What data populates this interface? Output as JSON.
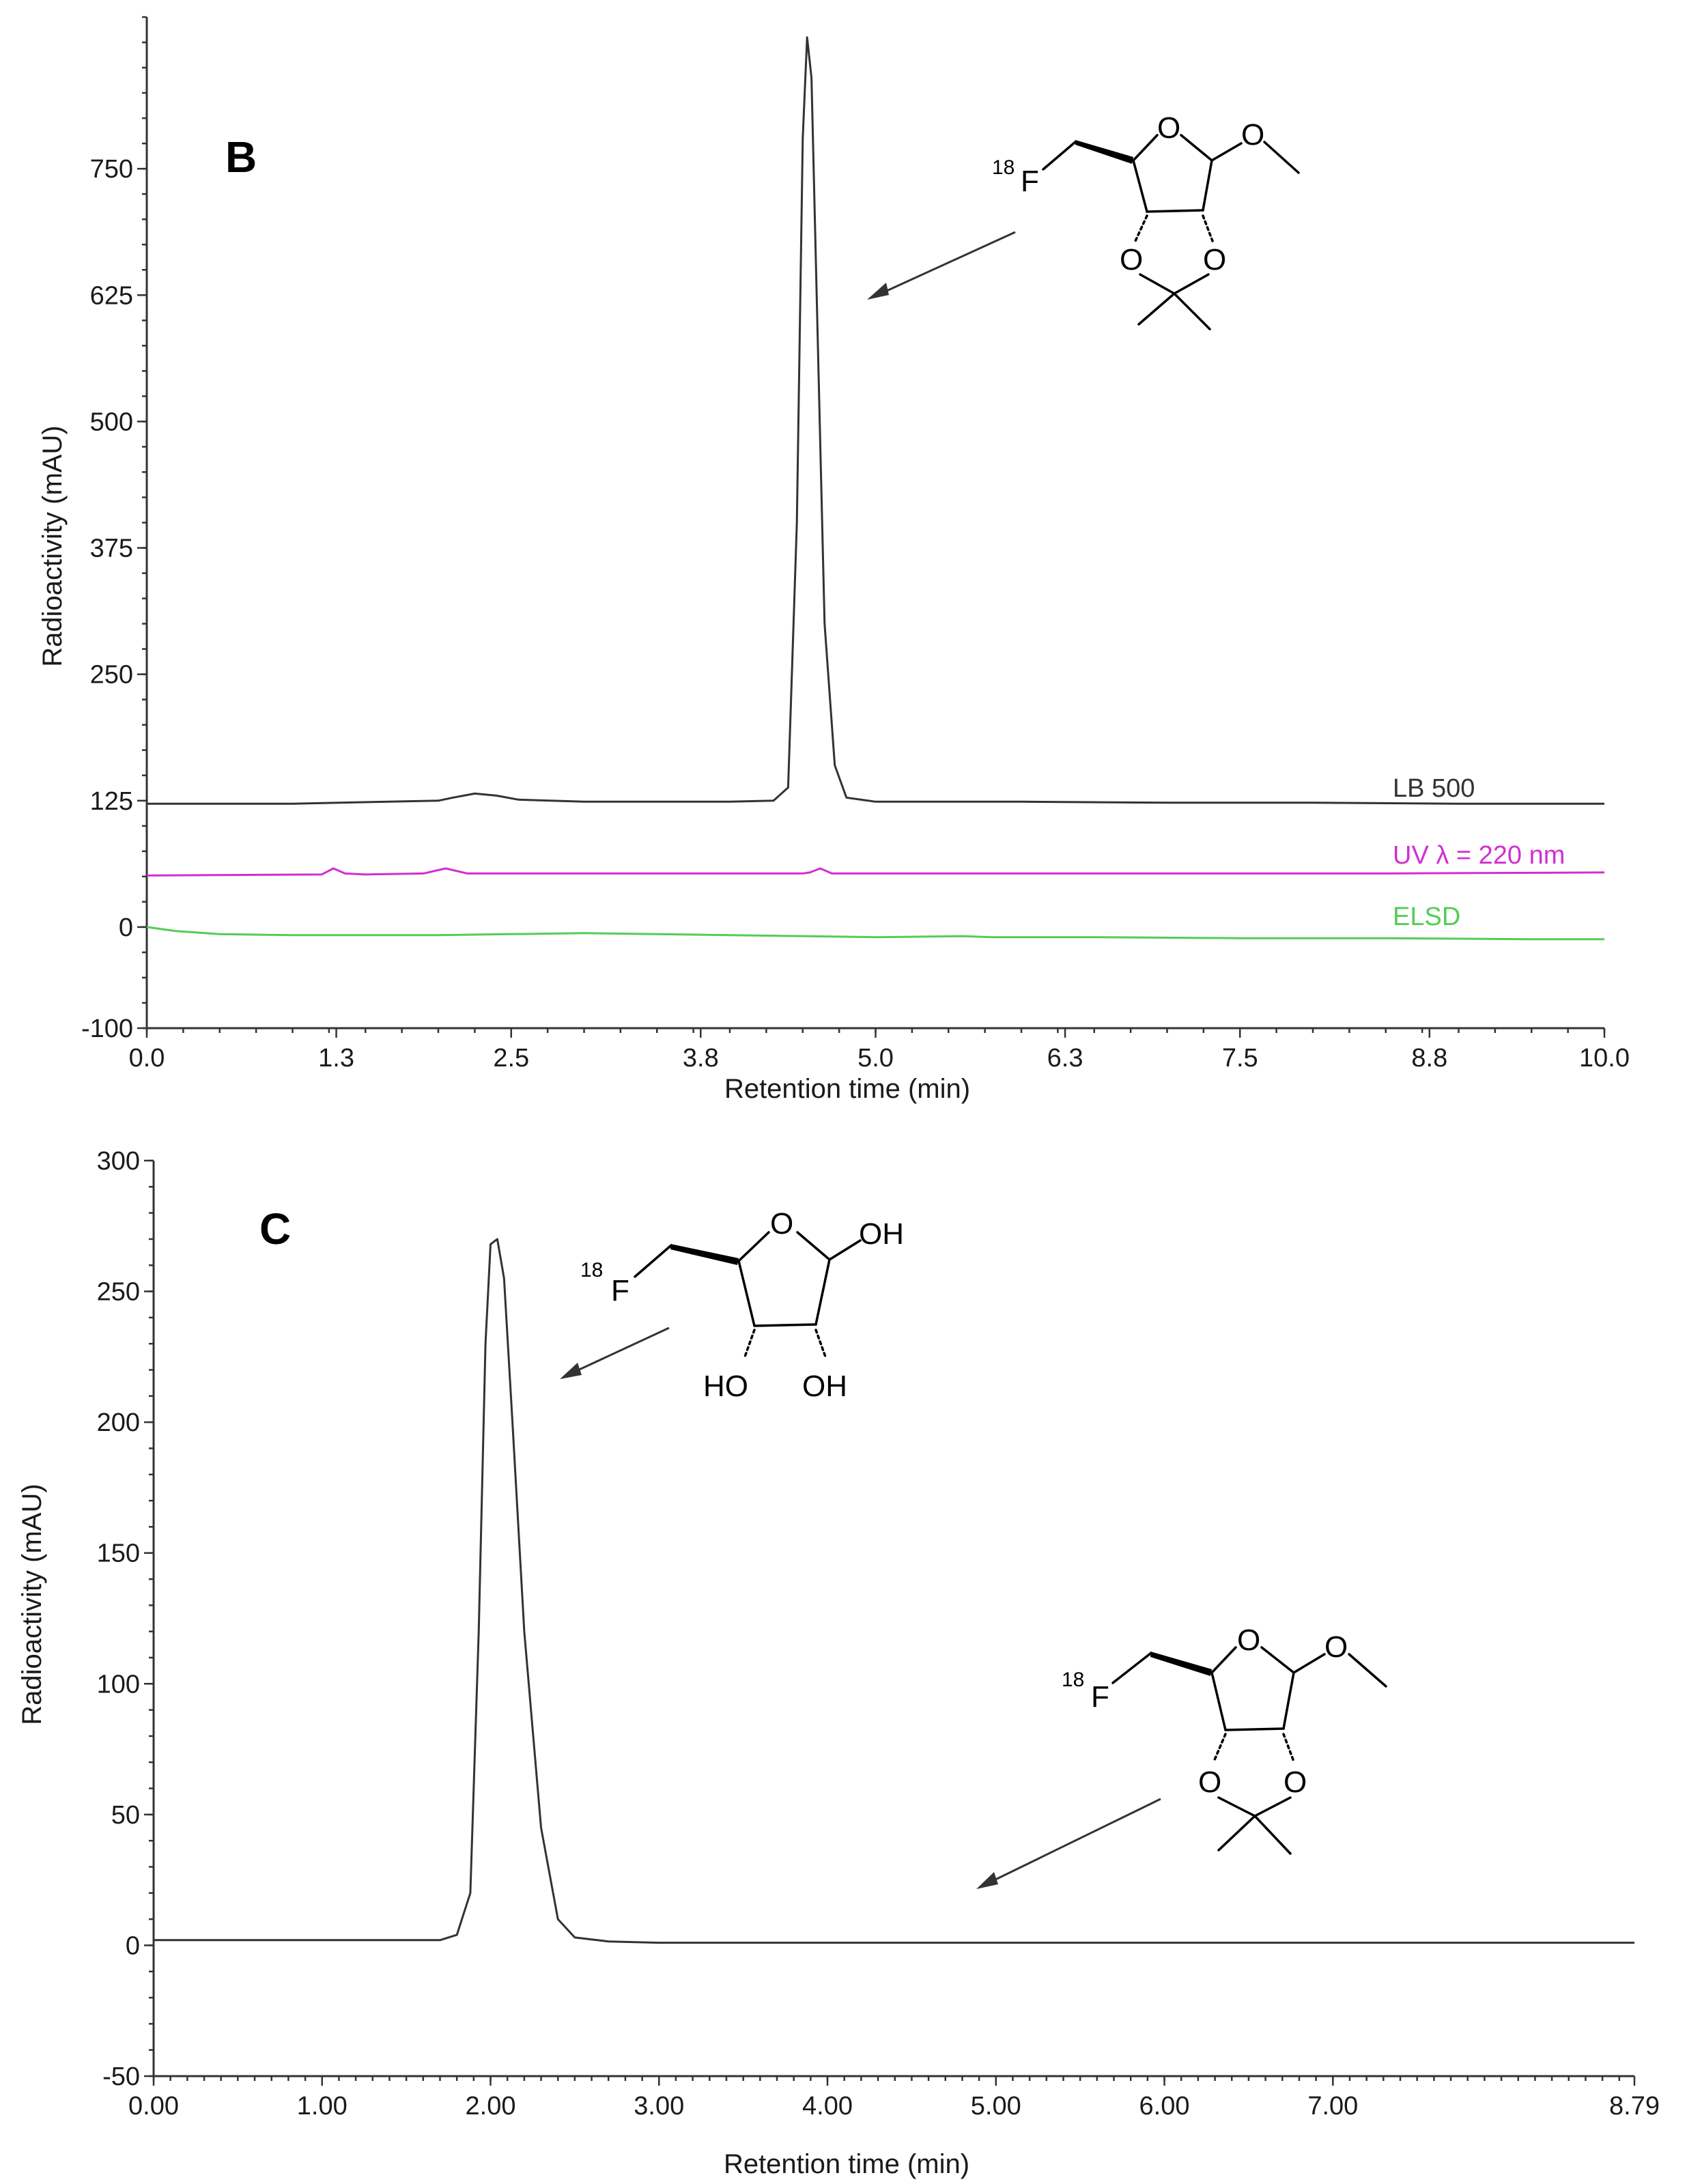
{
  "chart_data": [
    {
      "panel": "B",
      "type": "line",
      "xlabel": "Retention time (min)",
      "ylabel": "Radioactivity (mAU)",
      "xlim": [
        0,
        10
      ],
      "ylim": [
        -100,
        900
      ],
      "xticks": [
        "0.0",
        "1.3",
        "2.5",
        "3.8",
        "5.0",
        "6.3",
        "7.5",
        "8.8",
        "10.0"
      ],
      "yticks": [
        "-100",
        "0",
        "125",
        "250",
        "375",
        "500",
        "625",
        "750"
      ],
      "ytick_values": [
        -100,
        0,
        125,
        250,
        375,
        500,
        625,
        750
      ],
      "series": [
        {
          "name": "LB 500",
          "color": "#333333",
          "x": [
            0.0,
            1.0,
            2.0,
            2.1,
            2.25,
            2.4,
            2.55,
            3.0,
            4.0,
            4.3,
            4.4,
            4.46,
            4.5,
            4.53,
            4.56,
            4.6,
            4.65,
            4.72,
            4.8,
            5.0,
            6.0,
            7.0,
            8.0,
            9.0,
            10.0
          ],
          "y": [
            122,
            122,
            125,
            128,
            132,
            130,
            126,
            124,
            124,
            125,
            138,
            400,
            780,
            880,
            840,
            600,
            300,
            160,
            128,
            124,
            124,
            123,
            123,
            122,
            122
          ]
        },
        {
          "name": "UV λ = 220 nm",
          "color": "#d12fd1",
          "x": [
            0.0,
            1.2,
            1.28,
            1.36,
            1.5,
            1.9,
            2.05,
            2.2,
            3.0,
            4.5,
            4.55,
            4.62,
            4.7,
            5.5,
            7.0,
            8.5,
            10.0
          ],
          "y": [
            51,
            52,
            58,
            53,
            52,
            53,
            58,
            53,
            53,
            53,
            54,
            58,
            53,
            53,
            53,
            53,
            54
          ]
        },
        {
          "name": "ELSD",
          "color": "#55cc55",
          "x": [
            0.0,
            0.2,
            0.5,
            1.0,
            2.0,
            3.0,
            4.0,
            5.0,
            5.6,
            5.8,
            6.5,
            7.5,
            8.5,
            9.5,
            10.0
          ],
          "y": [
            0,
            -4,
            -7,
            -8,
            -8,
            -6,
            -8,
            -10,
            -9,
            -10,
            -10,
            -11,
            -11,
            -12,
            -12
          ]
        }
      ],
      "annotations": {
        "molecule": "protected methyl furanoside",
        "arrow_target_x": 4.9
      }
    },
    {
      "panel": "C",
      "type": "line",
      "xlabel": "Retention time (min)",
      "ylabel": "Radioactivity (mAU)",
      "xlim": [
        0,
        8.79
      ],
      "ylim": [
        -50,
        300
      ],
      "xticks": [
        "0.00",
        "1.00",
        "2.00",
        "3.00",
        "4.00",
        "5.00",
        "6.00",
        "7.00",
        "8.79"
      ],
      "xtick_values": [
        0,
        1,
        2,
        3,
        4,
        5,
        6,
        7,
        8.79
      ],
      "yticks": [
        "-50",
        "0",
        "50",
        "100",
        "150",
        "200",
        "250",
        "300"
      ],
      "ytick_values": [
        -50,
        0,
        50,
        100,
        150,
        200,
        250,
        300
      ],
      "series": [
        {
          "name": "",
          "color": "#333333",
          "x": [
            0.0,
            1.0,
            1.7,
            1.8,
            1.88,
            1.93,
            1.97,
            2.0,
            2.04,
            2.08,
            2.13,
            2.2,
            2.3,
            2.4,
            2.5,
            2.7,
            3.0,
            4.0,
            5.0,
            6.0,
            7.0,
            8.0,
            8.79
          ],
          "y": [
            2,
            2,
            2,
            4,
            20,
            120,
            230,
            268,
            270,
            255,
            200,
            120,
            45,
            10,
            3,
            1.5,
            1,
            1,
            1,
            1,
            1,
            1,
            1
          ]
        }
      ],
      "annotations": {
        "molecule_top": "deprotected furanose",
        "molecule_bottom": "protected methyl furanoside",
        "arrow_target_x_top": 2.4,
        "arrow_target_x_bottom": 4.9
      }
    }
  ],
  "chem_labels": {
    "f18_sup": "18",
    "f18_elem": "F",
    "O": "O",
    "OH": "OH",
    "HO": "HO"
  }
}
